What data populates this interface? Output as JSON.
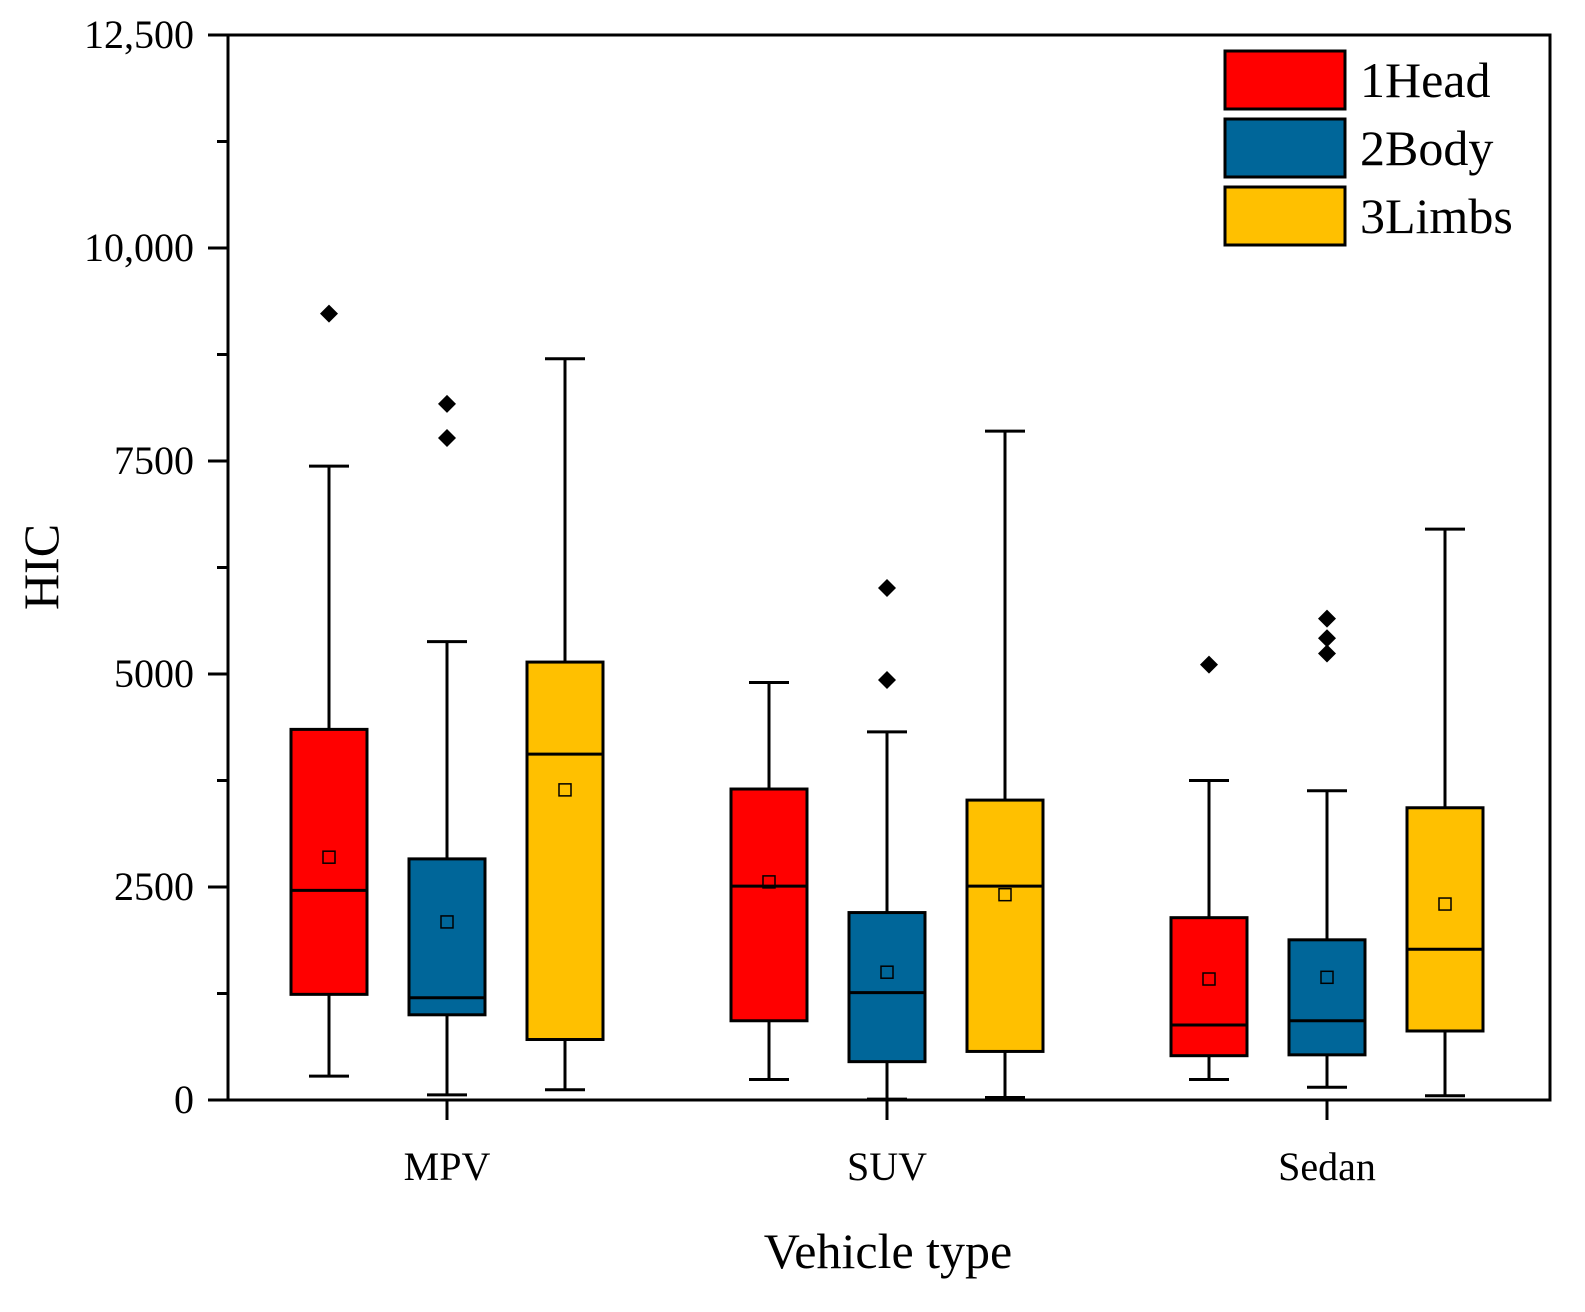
{
  "chart_data": {
    "type": "box",
    "title": "",
    "xlabel": "Vehicle type",
    "ylabel": "HIC",
    "ylim": [
      0,
      12500
    ],
    "yticks": [
      {
        "value": 0,
        "label": "0"
      },
      {
        "value": 2500,
        "label": "2500"
      },
      {
        "value": 5000,
        "label": "5000"
      },
      {
        "value": 7500,
        "label": "7500"
      },
      {
        "value": 10000,
        "label": "10,000"
      },
      {
        "value": 12500,
        "label": "12,500"
      }
    ],
    "categories": [
      "MPV",
      "SUV",
      "Sedan"
    ],
    "legend_position": "top-right",
    "series": [
      {
        "name": "1Head",
        "color": "#ff0000",
        "boxes": [
          {
            "whisker_low": 280,
            "q1": 1240,
            "median": 2460,
            "q3": 4350,
            "whisker_high": 7440,
            "mean": 2850,
            "outliers": [
              9230
            ]
          },
          {
            "whisker_low": 240,
            "q1": 930,
            "median": 2510,
            "q3": 3650,
            "whisker_high": 4900,
            "mean": 2560,
            "outliers": []
          },
          {
            "whisker_low": 240,
            "q1": 520,
            "median": 880,
            "q3": 2140,
            "whisker_high": 3750,
            "mean": 1420,
            "outliers": [
              5110
            ]
          }
        ]
      },
      {
        "name": "2Body",
        "color": "#006699",
        "boxes": [
          {
            "whisker_low": 60,
            "q1": 1000,
            "median": 1200,
            "q3": 2830,
            "whisker_high": 5380,
            "mean": 2090,
            "outliers": [
              7770,
              8170
            ]
          },
          {
            "whisker_low": 10,
            "q1": 450,
            "median": 1260,
            "q3": 2200,
            "whisker_high": 4320,
            "mean": 1500,
            "outliers": [
              4930,
              6010
            ]
          },
          {
            "whisker_low": 150,
            "q1": 530,
            "median": 930,
            "q3": 1880,
            "whisker_high": 3630,
            "mean": 1440,
            "outliers": [
              5240,
              5420,
              5650
            ]
          }
        ]
      },
      {
        "name": "3Limbs",
        "color": "#ffc000",
        "boxes": [
          {
            "whisker_low": 120,
            "q1": 710,
            "median": 4060,
            "q3": 5140,
            "whisker_high": 8700,
            "mean": 3640,
            "outliers": []
          },
          {
            "whisker_low": 30,
            "q1": 570,
            "median": 2510,
            "q3": 3520,
            "whisker_high": 7850,
            "mean": 2410,
            "outliers": []
          },
          {
            "whisker_low": 50,
            "q1": 810,
            "median": 1770,
            "q3": 3430,
            "whisker_high": 6700,
            "mean": 2300,
            "outliers": []
          }
        ]
      }
    ]
  }
}
